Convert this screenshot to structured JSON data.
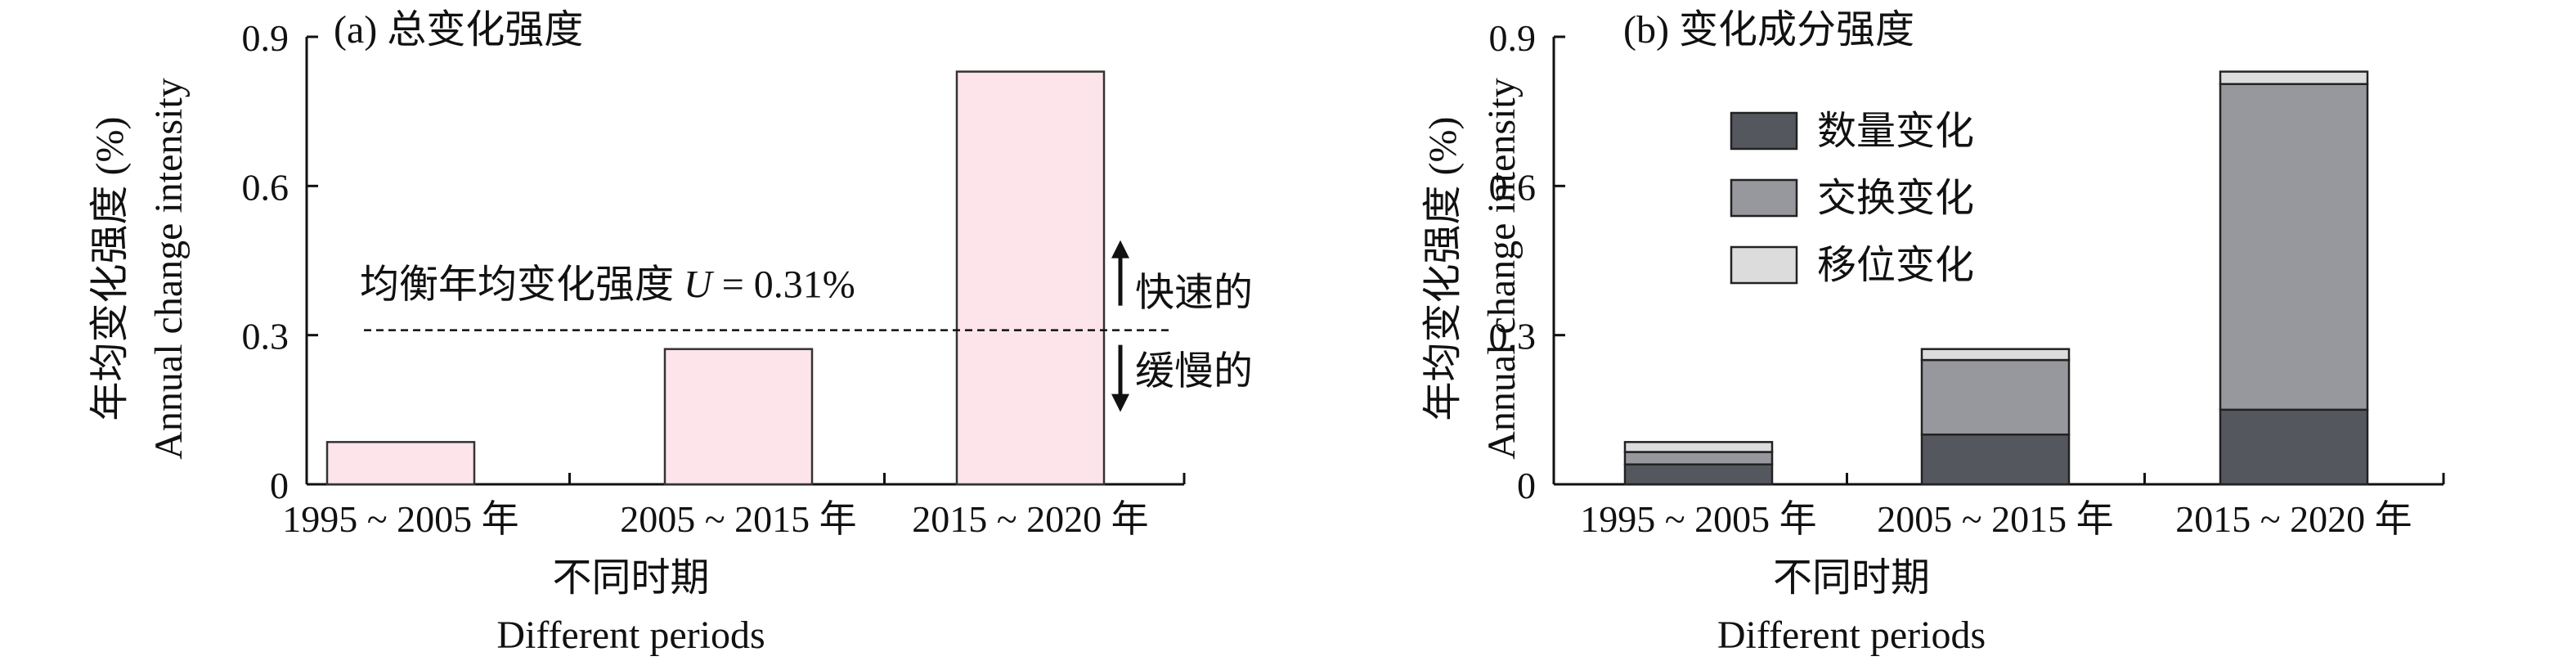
{
  "chart_data": [
    {
      "type": "bar",
      "title": "(a) 总变化强度",
      "ylabel_cn": "年均变化强度 (%)",
      "ylabel_en": "Annual change intensity",
      "xlabel_cn": "不同时期",
      "xlabel_en": "Different periods",
      "categories": [
        "1995 ~ 2005 年",
        "2005 ~ 2015 年",
        "2015 ~ 2020 年"
      ],
      "values": [
        0.085,
        0.272,
        0.83
      ],
      "ylim": [
        0,
        0.9
      ],
      "yticks": [
        0,
        0.3,
        0.6,
        0.9
      ],
      "ytick_labels": [
        "0",
        "0.3",
        "0.6",
        "0.9"
      ],
      "bar_color": "#fce4ea",
      "reference_line": {
        "value": 0.31,
        "label_prefix": "均衡年均变化强度 ",
        "label_var": "U",
        "label_suffix": " = 0.31%"
      },
      "annotations": {
        "up_label": "快速的",
        "down_label": "缓慢的"
      }
    },
    {
      "type": "stacked_bar",
      "title": "(b) 变化成分强度",
      "ylabel_cn": "年均变化强度 (%)",
      "ylabel_en": "Annual change intensity",
      "xlabel_cn": "不同时期",
      "xlabel_en": "Different periods",
      "categories": [
        "1995 ~ 2005 年",
        "2005 ~ 2015 年",
        "2015 ~ 2020 年"
      ],
      "ylim": [
        0,
        0.9
      ],
      "yticks": [
        0,
        0.3,
        0.6,
        0.9
      ],
      "ytick_labels": [
        "0",
        "0.3",
        "0.6",
        "0.9"
      ],
      "legend_position": "top-left",
      "series": [
        {
          "name": "数量变化",
          "color": "#55575f",
          "values": [
            0.04,
            0.1,
            0.15
          ]
        },
        {
          "name": "交换变化",
          "color": "#97989d",
          "values": [
            0.025,
            0.15,
            0.655
          ]
        },
        {
          "name": "移位变化",
          "color": "#dcdcdc",
          "values": [
            0.02,
            0.022,
            0.025
          ]
        }
      ]
    }
  ]
}
